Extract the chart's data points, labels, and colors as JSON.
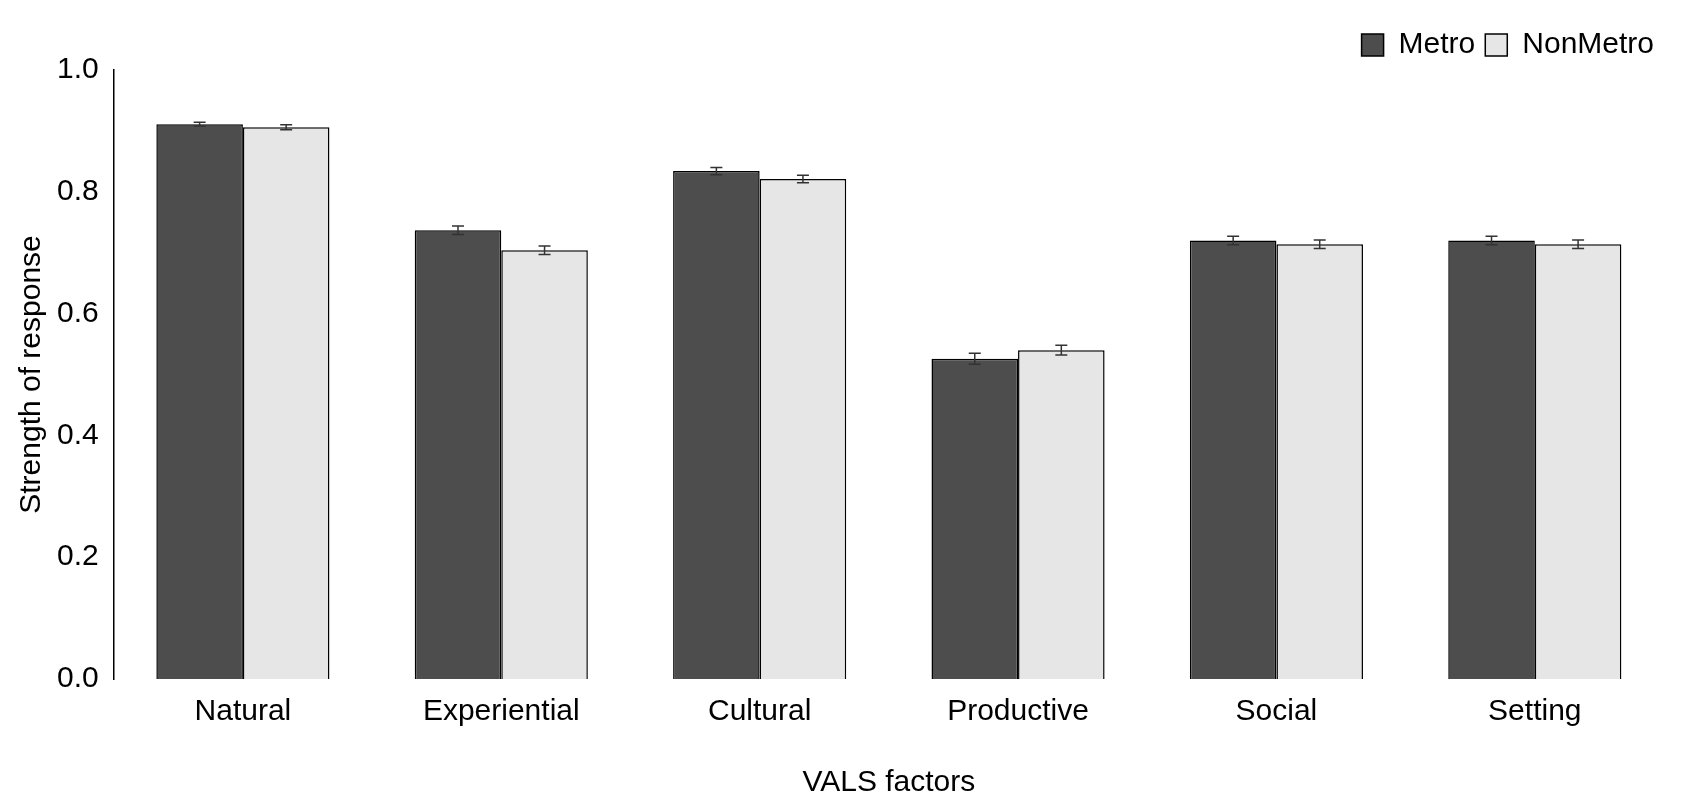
{
  "chart_data": {
    "type": "bar",
    "xlabel": "VALS factors",
    "ylabel": "Strength of response",
    "categories": [
      "Natural",
      "Experiential",
      "Cultural",
      "Productive",
      "Social",
      "Setting"
    ],
    "series": [
      {
        "name": "Metro",
        "color": "#4d4d4d",
        "values": [
          0.911,
          0.737,
          0.834,
          0.526,
          0.72,
          0.72
        ],
        "errors": [
          0.003,
          0.007,
          0.006,
          0.009,
          0.007,
          0.007
        ]
      },
      {
        "name": "NonMetro",
        "color": "#e6e6e6",
        "values": [
          0.906,
          0.704,
          0.821,
          0.54,
          0.714,
          0.714
        ],
        "errors": [
          0.004,
          0.007,
          0.006,
          0.008,
          0.007,
          0.007
        ]
      }
    ],
    "ylim": [
      0,
      1
    ],
    "yticks": [
      {
        "value": 0,
        "label": "0.0"
      },
      {
        "value": 0.2,
        "label": "0.2"
      },
      {
        "value": 0.4,
        "label": "0.4"
      },
      {
        "value": 0.6,
        "label": "0.6"
      },
      {
        "value": 0.8,
        "label": "0.8"
      },
      {
        "value": 1,
        "label": "1.0"
      }
    ],
    "grid": false,
    "legend": "top right"
  }
}
